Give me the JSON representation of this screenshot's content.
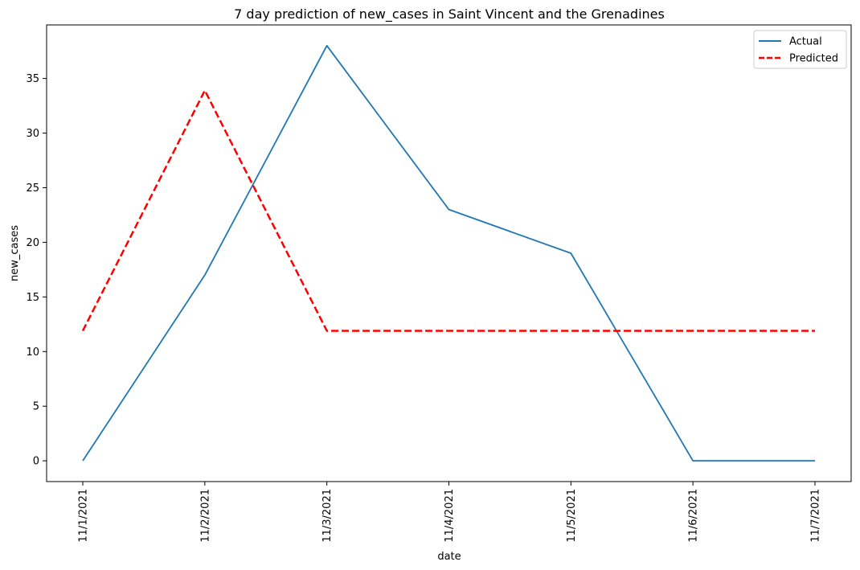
{
  "chart_data": {
    "type": "line",
    "title": "7 day prediction of new_cases in Saint Vincent and the Grenadines",
    "xlabel": "date",
    "ylabel": "new_cases",
    "categories": [
      "11/1/2021",
      "11/2/2021",
      "11/3/2021",
      "11/4/2021",
      "11/5/2021",
      "11/6/2021",
      "11/7/2021"
    ],
    "ylim": [
      -1.9,
      39.9
    ],
    "yticks": [
      0,
      5,
      10,
      15,
      20,
      25,
      30,
      35
    ],
    "grid": false,
    "legend_position": "top-right",
    "series": [
      {
        "name": "Actual",
        "values": [
          0,
          17,
          38,
          23,
          19,
          0,
          0
        ],
        "color": "#1f77b4",
        "style": "solid"
      },
      {
        "name": "Predicted",
        "values": [
          11.9,
          33.9,
          11.9,
          11.9,
          11.9,
          11.9,
          11.9
        ],
        "color": "#ff0000",
        "style": "dashed"
      }
    ]
  }
}
